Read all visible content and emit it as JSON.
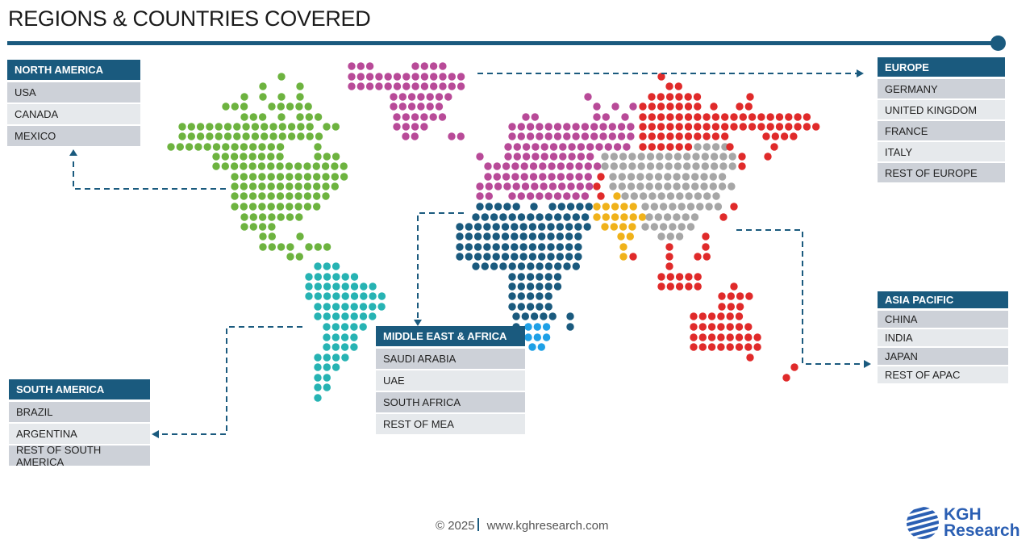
{
  "title": "REGIONS & COUNTRIES COVERED",
  "colors": {
    "accent": "#1a5a7e",
    "north_america": "#6db33f",
    "south_america": "#26b3b3",
    "europe": "#b84a98",
    "asia_pacific": "#e02a2a",
    "asia_gray": "#a6a6a6",
    "middle_east": "#f0b21a",
    "africa": "#1a5a7e",
    "south_africa": "#1ea0e6"
  },
  "regions": {
    "north_america": {
      "title": "NORTH AMERICA",
      "items": [
        "USA",
        "CANADA",
        "MEXICO"
      ]
    },
    "europe": {
      "title": "EUROPE",
      "items": [
        "GERMANY",
        "UNITED KINGDOM",
        "FRANCE",
        "ITALY",
        "REST OF EUROPE"
      ]
    },
    "middle_east_africa": {
      "title": "MIDDLE EAST & AFRICA",
      "items": [
        "SAUDI ARABIA",
        "UAE",
        "SOUTH AFRICA",
        "REST OF MEA"
      ]
    },
    "south_america": {
      "title": "SOUTH AMERICA",
      "items": [
        "BRAZIL",
        "ARGENTINA",
        "REST OF SOUTH AMERICA"
      ]
    },
    "asia_pacific": {
      "title": "ASIA PACIFIC",
      "items": [
        "CHINA",
        "INDIA",
        "JAPAN",
        "REST OF APAC"
      ]
    }
  },
  "footer": {
    "copyright": "© 2025",
    "website": "www.kghresearch.com"
  },
  "logo": {
    "line1": "KGH",
    "line2": "Research"
  }
}
